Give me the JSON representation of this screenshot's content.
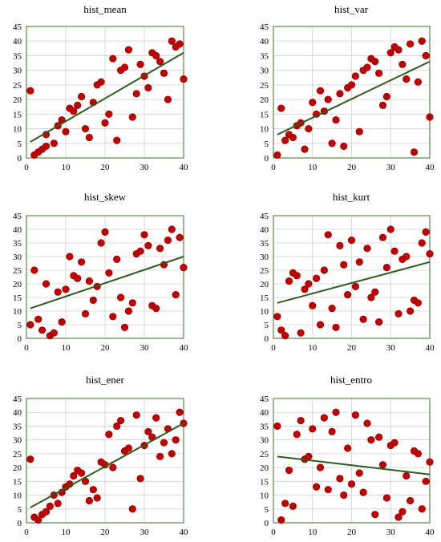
{
  "styles": {
    "point_color": "#c00000",
    "point_edge": "#8b0000",
    "trend_color": "#2e5a1c",
    "frame_color": "#3a6b28",
    "grid_color": "#d0d0d0",
    "text_color": "#000000"
  },
  "chart_data": [
    {
      "type": "scatter",
      "title": "hist_mean",
      "xlabel": "",
      "ylabel": "",
      "xlim": [
        0,
        40
      ],
      "ylim": [
        0,
        45
      ],
      "xticks": [
        0,
        10,
        20,
        30,
        40
      ],
      "yticks": [
        0,
        5,
        10,
        15,
        20,
        25,
        30,
        35,
        40,
        45
      ],
      "grid": true,
      "points": [
        [
          1,
          23
        ],
        [
          2,
          1
        ],
        [
          3,
          2
        ],
        [
          4,
          3
        ],
        [
          5,
          4
        ],
        [
          5,
          8
        ],
        [
          7,
          5
        ],
        [
          8,
          11
        ],
        [
          9,
          13
        ],
        [
          10,
          9
        ],
        [
          11,
          17
        ],
        [
          12,
          16
        ],
        [
          13,
          18
        ],
        [
          14,
          21
        ],
        [
          15,
          10
        ],
        [
          16,
          7
        ],
        [
          17,
          19
        ],
        [
          18,
          25
        ],
        [
          19,
          26
        ],
        [
          20,
          12
        ],
        [
          21,
          15
        ],
        [
          22,
          34
        ],
        [
          23,
          6
        ],
        [
          24,
          30
        ],
        [
          25,
          31
        ],
        [
          26,
          37
        ],
        [
          27,
          14
        ],
        [
          28,
          22
        ],
        [
          29,
          32
        ],
        [
          30,
          28
        ],
        [
          31,
          24
        ],
        [
          32,
          36
        ],
        [
          33,
          35
        ],
        [
          34,
          33
        ],
        [
          35,
          29
        ],
        [
          36,
          20
        ],
        [
          37,
          40
        ],
        [
          38,
          38
        ],
        [
          39,
          39
        ],
        [
          40,
          27
        ]
      ],
      "trend": [
        [
          1,
          5.5
        ],
        [
          40,
          36
        ]
      ]
    },
    {
      "type": "scatter",
      "title": "hist_var",
      "xlabel": "",
      "ylabel": "",
      "xlim": [
        0,
        40
      ],
      "ylim": [
        0,
        45
      ],
      "xticks": [
        0,
        10,
        20,
        30,
        40
      ],
      "yticks": [
        0,
        5,
        10,
        15,
        20,
        25,
        30,
        35,
        40,
        45
      ],
      "grid": true,
      "points": [
        [
          1,
          1
        ],
        [
          2,
          17
        ],
        [
          3,
          6
        ],
        [
          4,
          8
        ],
        [
          5,
          7
        ],
        [
          6,
          11
        ],
        [
          7,
          12
        ],
        [
          8,
          3
        ],
        [
          9,
          10
        ],
        [
          10,
          19
        ],
        [
          11,
          15
        ],
        [
          12,
          23
        ],
        [
          13,
          16
        ],
        [
          14,
          20
        ],
        [
          15,
          5
        ],
        [
          16,
          13
        ],
        [
          17,
          22
        ],
        [
          18,
          4
        ],
        [
          19,
          24
        ],
        [
          20,
          25
        ],
        [
          21,
          28
        ],
        [
          22,
          9
        ],
        [
          23,
          30
        ],
        [
          24,
          31
        ],
        [
          25,
          34
        ],
        [
          26,
          33
        ],
        [
          27,
          29
        ],
        [
          28,
          18
        ],
        [
          29,
          21
        ],
        [
          30,
          36
        ],
        [
          31,
          38
        ],
        [
          32,
          37
        ],
        [
          33,
          32
        ],
        [
          34,
          27
        ],
        [
          35,
          39
        ],
        [
          36,
          2
        ],
        [
          37,
          26
        ],
        [
          38,
          40
        ],
        [
          39,
          35
        ],
        [
          40,
          14
        ]
      ],
      "trend": [
        [
          1,
          8
        ],
        [
          40,
          33
        ]
      ]
    },
    {
      "type": "scatter",
      "title": "hist_skew",
      "xlabel": "",
      "ylabel": "",
      "xlim": [
        0,
        40
      ],
      "ylim": [
        0,
        45
      ],
      "xticks": [
        0,
        10,
        20,
        30,
        40
      ],
      "yticks": [
        0,
        5,
        10,
        15,
        20,
        25,
        30,
        35,
        40,
        45
      ],
      "grid": true,
      "points": [
        [
          1,
          5
        ],
        [
          2,
          25
        ],
        [
          3,
          7
        ],
        [
          4,
          3
        ],
        [
          5,
          20
        ],
        [
          6,
          1
        ],
        [
          7,
          2
        ],
        [
          8,
          17
        ],
        [
          9,
          6
        ],
        [
          10,
          18
        ],
        [
          11,
          30
        ],
        [
          12,
          23
        ],
        [
          13,
          22
        ],
        [
          14,
          28
        ],
        [
          15,
          9
        ],
        [
          16,
          21
        ],
        [
          17,
          14
        ],
        [
          18,
          19
        ],
        [
          19,
          35
        ],
        [
          20,
          39
        ],
        [
          21,
          24
        ],
        [
          22,
          8
        ],
        [
          23,
          29
        ],
        [
          24,
          15
        ],
        [
          25,
          4
        ],
        [
          26,
          10
        ],
        [
          27,
          13
        ],
        [
          28,
          31
        ],
        [
          29,
          32
        ],
        [
          30,
          38
        ],
        [
          31,
          34
        ],
        [
          32,
          12
        ],
        [
          33,
          11
        ],
        [
          34,
          33
        ],
        [
          35,
          27
        ],
        [
          36,
          36
        ],
        [
          37,
          40
        ],
        [
          38,
          16
        ],
        [
          39,
          37
        ],
        [
          40,
          26
        ]
      ],
      "trend": [
        [
          1,
          11
        ],
        [
          40,
          30
        ]
      ]
    },
    {
      "type": "scatter",
      "title": "hist_kurt",
      "xlabel": "",
      "ylabel": "",
      "xlim": [
        0,
        40
      ],
      "ylim": [
        0,
        45
      ],
      "xticks": [
        0,
        10,
        20,
        30,
        40
      ],
      "yticks": [
        0,
        5,
        10,
        15,
        20,
        25,
        30,
        35,
        40,
        45
      ],
      "grid": true,
      "points": [
        [
          1,
          8
        ],
        [
          2,
          3
        ],
        [
          3,
          1
        ],
        [
          4,
          21
        ],
        [
          5,
          24
        ],
        [
          6,
          23
        ],
        [
          7,
          2
        ],
        [
          8,
          18
        ],
        [
          9,
          20
        ],
        [
          10,
          12
        ],
        [
          11,
          22
        ],
        [
          12,
          5
        ],
        [
          13,
          25
        ],
        [
          14,
          38
        ],
        [
          15,
          11
        ],
        [
          16,
          4
        ],
        [
          17,
          34
        ],
        [
          18,
          27
        ],
        [
          19,
          16
        ],
        [
          20,
          36
        ],
        [
          21,
          19
        ],
        [
          22,
          28
        ],
        [
          23,
          7
        ],
        [
          24,
          33
        ],
        [
          25,
          15
        ],
        [
          26,
          17
        ],
        [
          27,
          6
        ],
        [
          28,
          37
        ],
        [
          29,
          26
        ],
        [
          30,
          40
        ],
        [
          31,
          32
        ],
        [
          32,
          9
        ],
        [
          33,
          29
        ],
        [
          34,
          30
        ],
        [
          35,
          10
        ],
        [
          36,
          14
        ],
        [
          37,
          13
        ],
        [
          38,
          35
        ],
        [
          39,
          39
        ],
        [
          40,
          31
        ]
      ],
      "trend": [
        [
          1,
          13
        ],
        [
          40,
          28
        ]
      ]
    },
    {
      "type": "scatter",
      "title": "hist_ener",
      "xlabel": "",
      "ylabel": "",
      "xlim": [
        0,
        40
      ],
      "ylim": [
        0,
        45
      ],
      "xticks": [
        0,
        10,
        20,
        30,
        40
      ],
      "yticks": [
        0,
        5,
        10,
        15,
        20,
        25,
        30,
        35,
        40,
        45
      ],
      "grid": true,
      "points": [
        [
          1,
          23
        ],
        [
          2,
          2
        ],
        [
          3,
          1
        ],
        [
          4,
          3
        ],
        [
          5,
          4
        ],
        [
          6,
          6
        ],
        [
          7,
          10
        ],
        [
          8,
          7
        ],
        [
          9,
          11
        ],
        [
          10,
          13
        ],
        [
          11,
          14
        ],
        [
          12,
          17
        ],
        [
          13,
          19
        ],
        [
          14,
          18
        ],
        [
          15,
          15
        ],
        [
          16,
          8
        ],
        [
          17,
          12
        ],
        [
          18,
          9
        ],
        [
          19,
          22
        ],
        [
          20,
          21
        ],
        [
          21,
          32
        ],
        [
          22,
          20
        ],
        [
          23,
          35
        ],
        [
          24,
          37
        ],
        [
          25,
          26
        ],
        [
          26,
          27
        ],
        [
          27,
          5
        ],
        [
          28,
          39
        ],
        [
          29,
          16
        ],
        [
          30,
          28
        ],
        [
          31,
          33
        ],
        [
          32,
          31
        ],
        [
          33,
          38
        ],
        [
          34,
          24
        ],
        [
          35,
          29
        ],
        [
          36,
          34
        ],
        [
          37,
          25
        ],
        [
          38,
          30
        ],
        [
          39,
          40
        ],
        [
          40,
          36
        ]
      ],
      "trend": [
        [
          1,
          5.5
        ],
        [
          40,
          36
        ]
      ]
    },
    {
      "type": "scatter",
      "title": "hist_entro",
      "xlabel": "",
      "ylabel": "",
      "xlim": [
        0,
        40
      ],
      "ylim": [
        0,
        45
      ],
      "xticks": [
        0,
        10,
        20,
        30,
        40
      ],
      "yticks": [
        0,
        5,
        10,
        15,
        20,
        25,
        30,
        35,
        40,
        45
      ],
      "grid": true,
      "points": [
        [
          1,
          35
        ],
        [
          2,
          1
        ],
        [
          3,
          7
        ],
        [
          4,
          19
        ],
        [
          5,
          6
        ],
        [
          6,
          32
        ],
        [
          7,
          37
        ],
        [
          8,
          23
        ],
        [
          9,
          24
        ],
        [
          10,
          34
        ],
        [
          11,
          13
        ],
        [
          12,
          20
        ],
        [
          13,
          38
        ],
        [
          14,
          12
        ],
        [
          15,
          33
        ],
        [
          16,
          40
        ],
        [
          17,
          16
        ],
        [
          18,
          10
        ],
        [
          19,
          27
        ],
        [
          20,
          14
        ],
        [
          21,
          39
        ],
        [
          22,
          18
        ],
        [
          23,
          11
        ],
        [
          24,
          36
        ],
        [
          25,
          30
        ],
        [
          26,
          3
        ],
        [
          27,
          31
        ],
        [
          28,
          21
        ],
        [
          29,
          9
        ],
        [
          30,
          28
        ],
        [
          31,
          29
        ],
        [
          32,
          2
        ],
        [
          33,
          4
        ],
        [
          34,
          17
        ],
        [
          35,
          8
        ],
        [
          36,
          26
        ],
        [
          37,
          25
        ],
        [
          38,
          5
        ],
        [
          39,
          15
        ],
        [
          40,
          22
        ]
      ],
      "trend": [
        [
          1,
          24
        ],
        [
          40,
          17.5
        ]
      ]
    }
  ]
}
